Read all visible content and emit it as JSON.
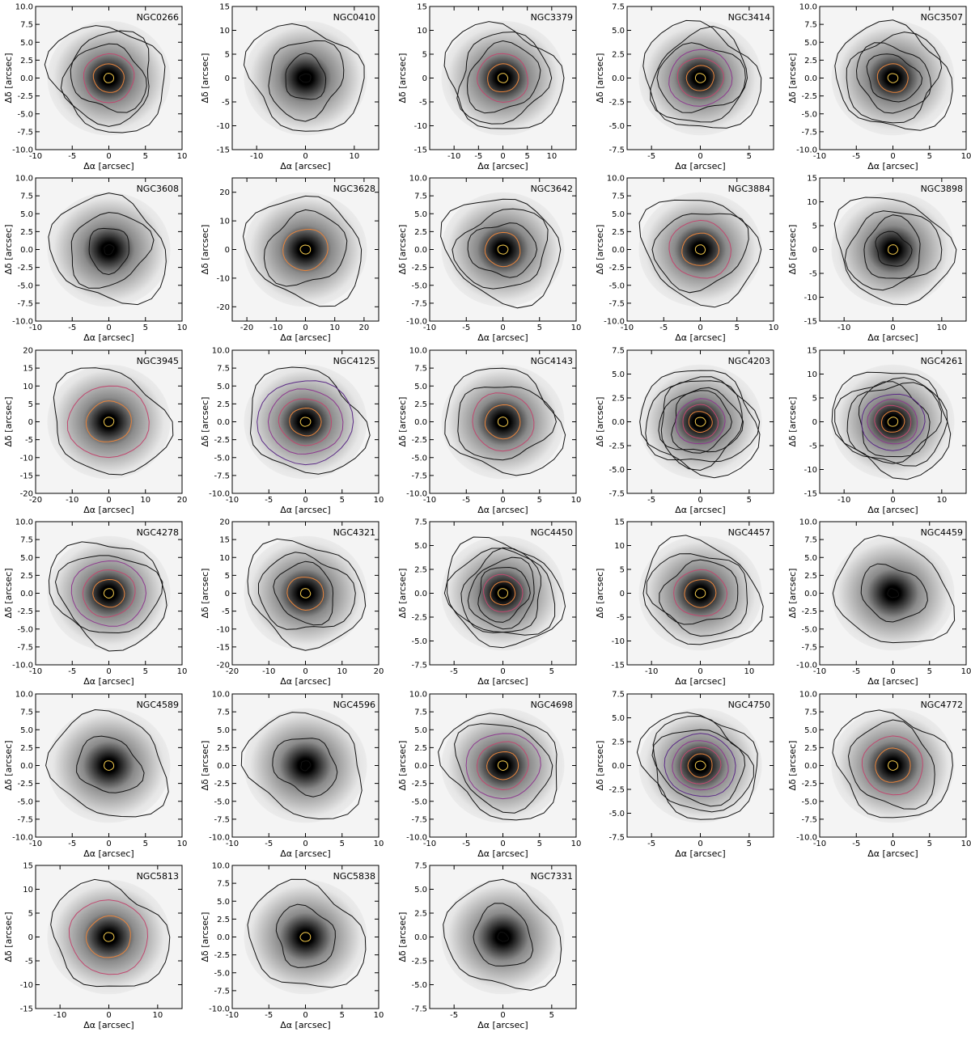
{
  "figure": {
    "xlabel": "Δα [arcsec]",
    "ylabel": "Δδ [arcsec]",
    "columns": 5,
    "colors": {
      "background": "#ffffff",
      "frame": "#000000",
      "image_dark": "#000000",
      "image_mid": "#8a8a8a",
      "image_light": "#e6e6e6",
      "contour_outer": "#111111",
      "contour_mid1": "#5b2a86",
      "contour_mid2": "#8e3a8f",
      "contour_mid3": "#c0486f",
      "contour_inner1": "#e8843c",
      "contour_inner2": "#f2c94c"
    },
    "panels": [
      {
        "name": "NGC0266",
        "xlim": [
          -10,
          10
        ],
        "ylim": [
          -10,
          10
        ],
        "xticks": [
          -10,
          -5,
          0,
          5,
          10
        ],
        "yticks": [
          -10.0,
          -7.5,
          -5.0,
          -2.5,
          0.0,
          2.5,
          5.0,
          7.5,
          10.0
        ],
        "contours": 6,
        "colored": 3
      },
      {
        "name": "NGC0410",
        "xlim": [
          -15,
          15
        ],
        "ylim": [
          -15,
          15
        ],
        "xticks": [
          -10,
          0,
          10
        ],
        "yticks": [
          -15,
          -10,
          -5,
          0,
          5,
          10,
          15
        ],
        "contours": 4,
        "colored": 0
      },
      {
        "name": "NGC3379",
        "xlim": [
          -15,
          15
        ],
        "ylim": [
          -15,
          15
        ],
        "xticks": [
          -10,
          -5,
          0,
          5,
          10
        ],
        "yticks": [
          -15,
          -10,
          -5,
          0,
          5,
          10,
          15
        ],
        "contours": 6,
        "colored": 3
      },
      {
        "name": "NGC3414",
        "xlim": [
          -7.5,
          7.5
        ],
        "ylim": [
          -7.5,
          7.5
        ],
        "xticks": [
          -5,
          0,
          5
        ],
        "yticks": [
          -7.5,
          -5.0,
          -2.5,
          0.0,
          2.5,
          5.0,
          7.5
        ],
        "contours": 7,
        "colored": 4
      },
      {
        "name": "NGC3507",
        "xlim": [
          -10,
          10
        ],
        "ylim": [
          -10,
          10
        ],
        "xticks": [
          -10,
          -5,
          0,
          5,
          10
        ],
        "yticks": [
          -10.0,
          -7.5,
          -5.0,
          -2.5,
          0.0,
          2.5,
          5.0,
          7.5,
          10.0
        ],
        "contours": 6,
        "colored": 2
      },
      {
        "name": "NGC3608",
        "xlim": [
          -10,
          10
        ],
        "ylim": [
          -10,
          10
        ],
        "xticks": [
          -10,
          -5,
          0,
          5,
          10
        ],
        "yticks": [
          -10.0,
          -7.5,
          -5.0,
          -2.5,
          0.0,
          2.5,
          5.0,
          7.5,
          10.0
        ],
        "contours": 4,
        "colored": 0
      },
      {
        "name": "NGC3628",
        "xlim": [
          -25,
          25
        ],
        "ylim": [
          -25,
          25
        ],
        "xticks": [
          -20,
          -10,
          0,
          10,
          20
        ],
        "yticks": [
          -20,
          -10,
          0,
          10,
          20
        ],
        "contours": 4,
        "colored": 2
      },
      {
        "name": "NGC3642",
        "xlim": [
          -10,
          10
        ],
        "ylim": [
          -10,
          10
        ],
        "xticks": [
          -10,
          -5,
          0,
          5,
          10
        ],
        "yticks": [
          -10.0,
          -7.5,
          -5.0,
          -2.5,
          0.0,
          2.5,
          5.0,
          7.5,
          10.0
        ],
        "contours": 5,
        "colored": 2
      },
      {
        "name": "NGC3884",
        "xlim": [
          -10,
          10
        ],
        "ylim": [
          -10,
          10
        ],
        "xticks": [
          -10,
          -5,
          0,
          5,
          10
        ],
        "yticks": [
          -10.0,
          -7.5,
          -5.0,
          -2.5,
          0.0,
          2.5,
          5.0,
          7.5,
          10.0
        ],
        "contours": 5,
        "colored": 3
      },
      {
        "name": "NGC3898",
        "xlim": [
          -15,
          15
        ],
        "ylim": [
          -15,
          15
        ],
        "xticks": [
          -10,
          0,
          10
        ],
        "yticks": [
          -15,
          -10,
          -5,
          0,
          5,
          10,
          15
        ],
        "contours": 5,
        "colored": 1
      },
      {
        "name": "NGC3945",
        "xlim": [
          -20,
          20
        ],
        "ylim": [
          -20,
          20
        ],
        "xticks": [
          -20,
          -10,
          0,
          10,
          20
        ],
        "yticks": [
          -20,
          -15,
          -10,
          -5,
          0,
          5,
          10,
          15,
          20
        ],
        "contours": 4,
        "colored": 3
      },
      {
        "name": "NGC4125",
        "xlim": [
          -10,
          10
        ],
        "ylim": [
          -10,
          10
        ],
        "xticks": [
          -10,
          -5,
          0,
          5,
          10
        ],
        "yticks": [
          -10.0,
          -7.5,
          -5.0,
          -2.5,
          0.0,
          2.5,
          5.0,
          7.5,
          10.0
        ],
        "contours": 6,
        "colored": 5
      },
      {
        "name": "NGC4143",
        "xlim": [
          -10,
          10
        ],
        "ylim": [
          -10,
          10
        ],
        "xticks": [
          -10,
          -5,
          0,
          5,
          10
        ],
        "yticks": [
          -10.0,
          -7.5,
          -5.0,
          -2.5,
          0.0,
          2.5,
          5.0,
          7.5,
          10.0
        ],
        "contours": 5,
        "colored": 3
      },
      {
        "name": "NGC4203",
        "xlim": [
          -7.5,
          7.5
        ],
        "ylim": [
          -7.5,
          7.5
        ],
        "xticks": [
          -5,
          0,
          5
        ],
        "yticks": [
          -7.5,
          -5.0,
          -2.5,
          0.0,
          2.5,
          5.0,
          7.5
        ],
        "contours": 9,
        "colored": 4
      },
      {
        "name": "NGC4261",
        "xlim": [
          -15,
          15
        ],
        "ylim": [
          -15,
          15
        ],
        "xticks": [
          -10,
          0,
          10
        ],
        "yticks": [
          -15,
          -10,
          -5,
          0,
          5,
          10,
          15
        ],
        "contours": 9,
        "colored": 5
      },
      {
        "name": "NGC4278",
        "xlim": [
          -10,
          10
        ],
        "ylim": [
          -10,
          10
        ],
        "xticks": [
          -10,
          -5,
          0,
          5,
          10
        ],
        "yticks": [
          -10.0,
          -7.5,
          -5.0,
          -2.5,
          0.0,
          2.5,
          5.0,
          7.5,
          10.0
        ],
        "contours": 6,
        "colored": 4
      },
      {
        "name": "NGC4321",
        "xlim": [
          -20,
          20
        ],
        "ylim": [
          -20,
          20
        ],
        "xticks": [
          -20,
          -10,
          0,
          10,
          20
        ],
        "yticks": [
          -20,
          -15,
          -10,
          -5,
          0,
          5,
          10,
          15,
          20
        ],
        "contours": 5,
        "colored": 2
      },
      {
        "name": "NGC4450",
        "xlim": [
          -7.5,
          7.5
        ],
        "ylim": [
          -7.5,
          7.5
        ],
        "xticks": [
          -5,
          0,
          5
        ],
        "yticks": [
          -7.5,
          -5.0,
          -2.5,
          0.0,
          2.5,
          5.0,
          7.5
        ],
        "contours": 8,
        "colored": 3
      },
      {
        "name": "NGC4457",
        "xlim": [
          -15,
          15
        ],
        "ylim": [
          -15,
          15
        ],
        "xticks": [
          -10,
          0,
          10
        ],
        "yticks": [
          -15,
          -10,
          -5,
          0,
          5,
          10,
          15
        ],
        "contours": 6,
        "colored": 3
      },
      {
        "name": "NGC4459",
        "xlim": [
          -10,
          10
        ],
        "ylim": [
          -10,
          10
        ],
        "xticks": [
          -10,
          -5,
          0,
          5,
          10
        ],
        "yticks": [
          -10.0,
          -7.5,
          -5.0,
          -2.5,
          0.0,
          2.5,
          5.0,
          7.5,
          10.0
        ],
        "contours": 3,
        "colored": 0
      },
      {
        "name": "NGC4589",
        "xlim": [
          -10,
          10
        ],
        "ylim": [
          -10,
          10
        ],
        "xticks": [
          -10,
          -5,
          0,
          5,
          10
        ],
        "yticks": [
          -10.0,
          -7.5,
          -5.0,
          -2.5,
          0.0,
          2.5,
          5.0,
          7.5,
          10.0
        ],
        "contours": 3,
        "colored": 1
      },
      {
        "name": "NGC4596",
        "xlim": [
          -10,
          10
        ],
        "ylim": [
          -10,
          10
        ],
        "xticks": [
          -10,
          -5,
          0,
          5,
          10
        ],
        "yticks": [
          -10.0,
          -7.5,
          -5.0,
          -2.5,
          0.0,
          2.5,
          5.0,
          7.5,
          10.0
        ],
        "contours": 3,
        "colored": 0
      },
      {
        "name": "NGC4698",
        "xlim": [
          -10,
          10
        ],
        "ylim": [
          -10,
          10
        ],
        "xticks": [
          -10,
          -5,
          0,
          5,
          10
        ],
        "yticks": [
          -10.0,
          -7.5,
          -5.0,
          -2.5,
          0.0,
          2.5,
          5.0,
          7.5,
          10.0
        ],
        "contours": 6,
        "colored": 4
      },
      {
        "name": "NGC4750",
        "xlim": [
          -7.5,
          7.5
        ],
        "ylim": [
          -7.5,
          7.5
        ],
        "xticks": [
          -5,
          0,
          5
        ],
        "yticks": [
          -7.5,
          -5.0,
          -2.5,
          0.0,
          2.5,
          5.0,
          7.5
        ],
        "contours": 8,
        "colored": 5
      },
      {
        "name": "NGC4772",
        "xlim": [
          -10,
          10
        ],
        "ylim": [
          -10,
          10
        ],
        "xticks": [
          -10,
          -5,
          0,
          5,
          10
        ],
        "yticks": [
          -10.0,
          -7.5,
          -5.0,
          -2.5,
          0.0,
          2.5,
          5.0,
          7.5,
          10.0
        ],
        "contours": 5,
        "colored": 3
      },
      {
        "name": "NGC5813",
        "xlim": [
          -15,
          15
        ],
        "ylim": [
          -15,
          15
        ],
        "xticks": [
          -10,
          0,
          10
        ],
        "yticks": [
          -15,
          -10,
          -5,
          0,
          5,
          10,
          15
        ],
        "contours": 4,
        "colored": 3
      },
      {
        "name": "NGC5838",
        "xlim": [
          -10,
          10
        ],
        "ylim": [
          -10,
          10
        ],
        "xticks": [
          -10,
          -5,
          0,
          5,
          10
        ],
        "yticks": [
          -10.0,
          -7.5,
          -5.0,
          -2.5,
          0.0,
          2.5,
          5.0,
          7.5,
          10.0
        ],
        "contours": 3,
        "colored": 1
      },
      {
        "name": "NGC7331",
        "xlim": [
          -7.5,
          7.5
        ],
        "ylim": [
          -7.5,
          7.5
        ],
        "xticks": [
          -5,
          0,
          5
        ],
        "yticks": [
          -7.5,
          -5.0,
          -2.5,
          0.0,
          2.5,
          5.0,
          7.5
        ],
        "contours": 3,
        "colored": 0
      }
    ]
  }
}
